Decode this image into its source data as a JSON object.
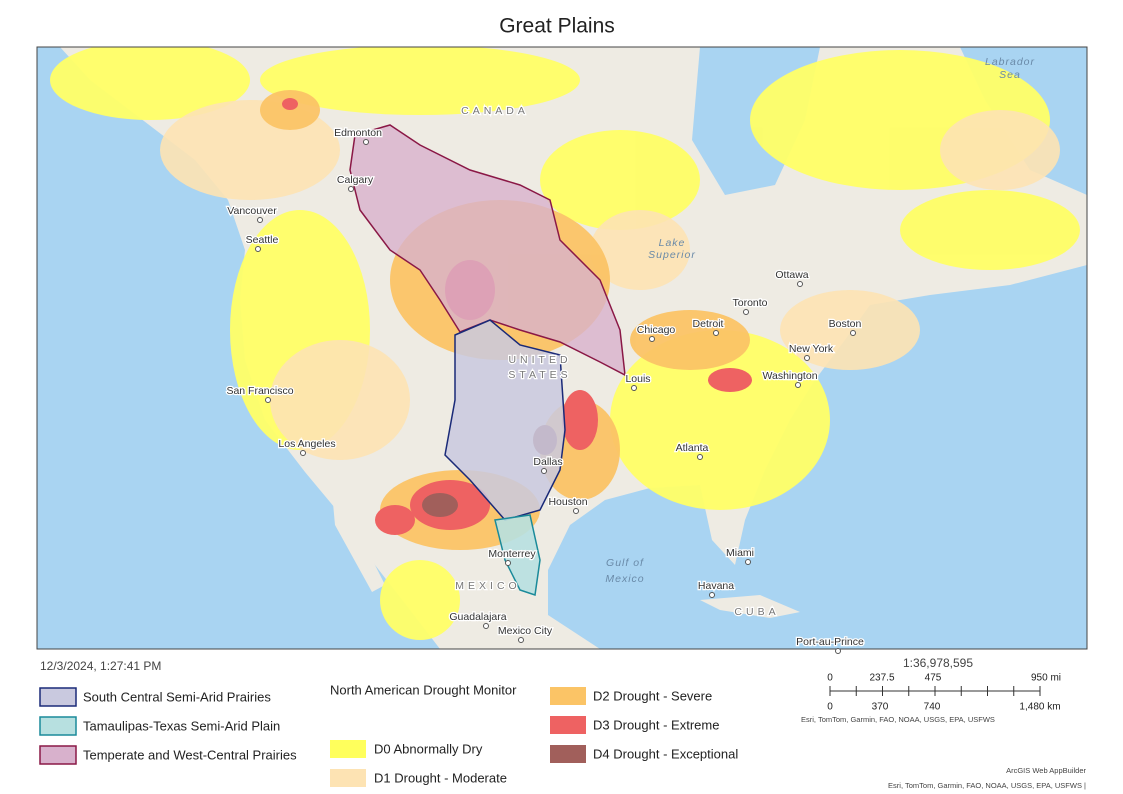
{
  "title": "Great Plains",
  "map_labels": [
    "Labrador",
    "Sea",
    "CANADA",
    "Edmonton",
    "Calgary",
    "Vancouver",
    "Seattle",
    "Lake",
    "Superior",
    "Ottawa",
    "Toronto",
    "Boston",
    "Chicago",
    "Detroit",
    "New York",
    "Washington",
    "Louis",
    "UNITED",
    "STATES",
    "San Francisco",
    "Los Angeles",
    "Atlanta",
    "Dallas",
    "Houston",
    "Monterrey",
    "Gulf of",
    "Mexico",
    "Miami",
    "Havana",
    "CUBA",
    "MEXICO",
    "Guadalajara",
    "Mexico City",
    "Port-au-Prince"
  ],
  "timestamp": "12/3/2024, 1:27:41 PM",
  "regions_legend": [
    "South Central Semi-Arid Prairies",
    "Tamaulipas-Texas Semi-Arid Plain",
    "Temperate and West-Central Prairies"
  ],
  "drought_legend": {
    "title": "North American Drought Monitor",
    "items": [
      "D0 Abnormally Dry",
      "D1 Drought - Moderate",
      "D2 Drought - Severe",
      "D3 Drought - Extreme",
      "D4 Drought - Exceptional"
    ]
  },
  "scale": {
    "ratio": "1:36,978,595",
    "mi_ticks": [
      "0",
      "237.5",
      "475",
      "950 mi"
    ],
    "km_ticks": [
      "0",
      "370",
      "740",
      "1,480 km"
    ],
    "attribution": "Esri, TomTom, Garmin, FAO, NOAA, USGS, EPA, USFWS"
  },
  "footer": {
    "builder": "ArcGIS Web AppBuilder",
    "attribution": "Esri, TomTom, Garmin, FAO, NOAA, USGS, EPA, USFWS |"
  }
}
